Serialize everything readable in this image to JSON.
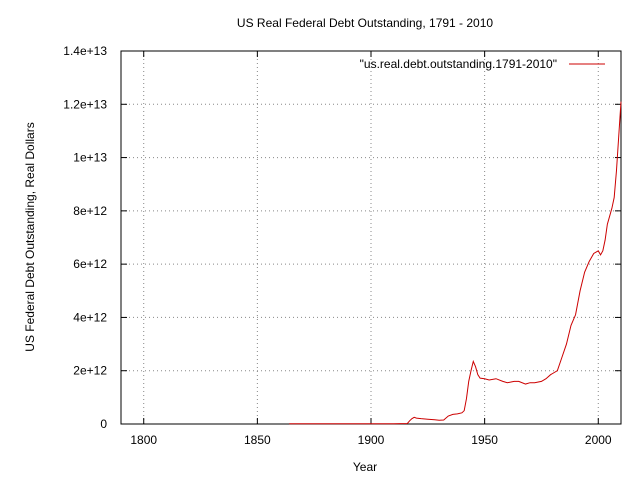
{
  "chart_data": {
    "type": "line",
    "title": "US Real Federal Debt Outstanding, 1791 - 2010",
    "xlabel": "Year",
    "ylabel": "US Federal Debt Outstanding, Real Dollars",
    "xlim": [
      1790,
      2010
    ],
    "ylim": [
      0,
      14000000000000
    ],
    "x_ticks": [
      1800,
      1850,
      1900,
      1950,
      2000
    ],
    "x_tick_labels": [
      "1800",
      "1850",
      "1900",
      "1950",
      "2000"
    ],
    "y_ticks": [
      0,
      2000000000000,
      4000000000000,
      6000000000000,
      8000000000000,
      10000000000000,
      12000000000000,
      14000000000000
    ],
    "y_tick_labels": [
      "0",
      "2e+12",
      "4e+12",
      "6e+12",
      "8e+12",
      "1e+13",
      "1.2e+13",
      "1.4e+13"
    ],
    "grid": true,
    "legend_position": "top-right",
    "series": [
      {
        "name": "\"us.real.debt.outstanding.1791-2010\"",
        "color": "#cc0000",
        "x": [
          1864,
          1870,
          1880,
          1890,
          1900,
          1910,
          1916,
          1917,
          1918,
          1919,
          1920,
          1922,
          1925,
          1928,
          1930,
          1932,
          1934,
          1936,
          1938,
          1940,
          1941,
          1942,
          1943,
          1944,
          1945,
          1946,
          1947,
          1948,
          1950,
          1952,
          1955,
          1958,
          1960,
          1963,
          1965,
          1968,
          1970,
          1972,
          1975,
          1977,
          1979,
          1980,
          1982,
          1984,
          1986,
          1988,
          1990,
          1992,
          1994,
          1996,
          1998,
          2000,
          2001,
          2002,
          2003,
          2004,
          2005,
          2006,
          2007,
          2008,
          2009,
          2010
        ],
        "y": [
          10000000000.0,
          10000000000.0,
          10000000000.0,
          10000000000.0,
          10000000000.0,
          10000000000.0,
          20000000000.0,
          120000000000.0,
          200000000000.0,
          250000000000.0,
          220000000000.0,
          200000000000.0,
          180000000000.0,
          160000000000.0,
          140000000000.0,
          150000000000.0,
          300000000000.0,
          360000000000.0,
          380000000000.0,
          420000000000.0,
          500000000000.0,
          950000000000.0,
          1600000000000.0,
          2000000000000.0,
          2350000000000.0,
          2150000000000.0,
          1850000000000.0,
          1720000000000.0,
          1700000000000.0,
          1650000000000.0,
          1700000000000.0,
          1600000000000.0,
          1550000000000.0,
          1600000000000.0,
          1600000000000.0,
          1500000000000.0,
          1550000000000.0,
          1550000000000.0,
          1600000000000.0,
          1700000000000.0,
          1850000000000.0,
          1900000000000.0,
          2000000000000.0,
          2500000000000.0,
          3000000000000.0,
          3700000000000.0,
          4100000000000.0,
          5000000000000.0,
          5700000000000.0,
          6100000000000.0,
          6400000000000.0,
          6500000000000.0,
          6350000000000.0,
          6500000000000.0,
          6900000000000.0,
          7500000000000.0,
          7800000000000.0,
          8100000000000.0,
          8500000000000.0,
          9500000000000.0,
          10800000000000.0,
          12100000000000.0
        ]
      }
    ]
  }
}
